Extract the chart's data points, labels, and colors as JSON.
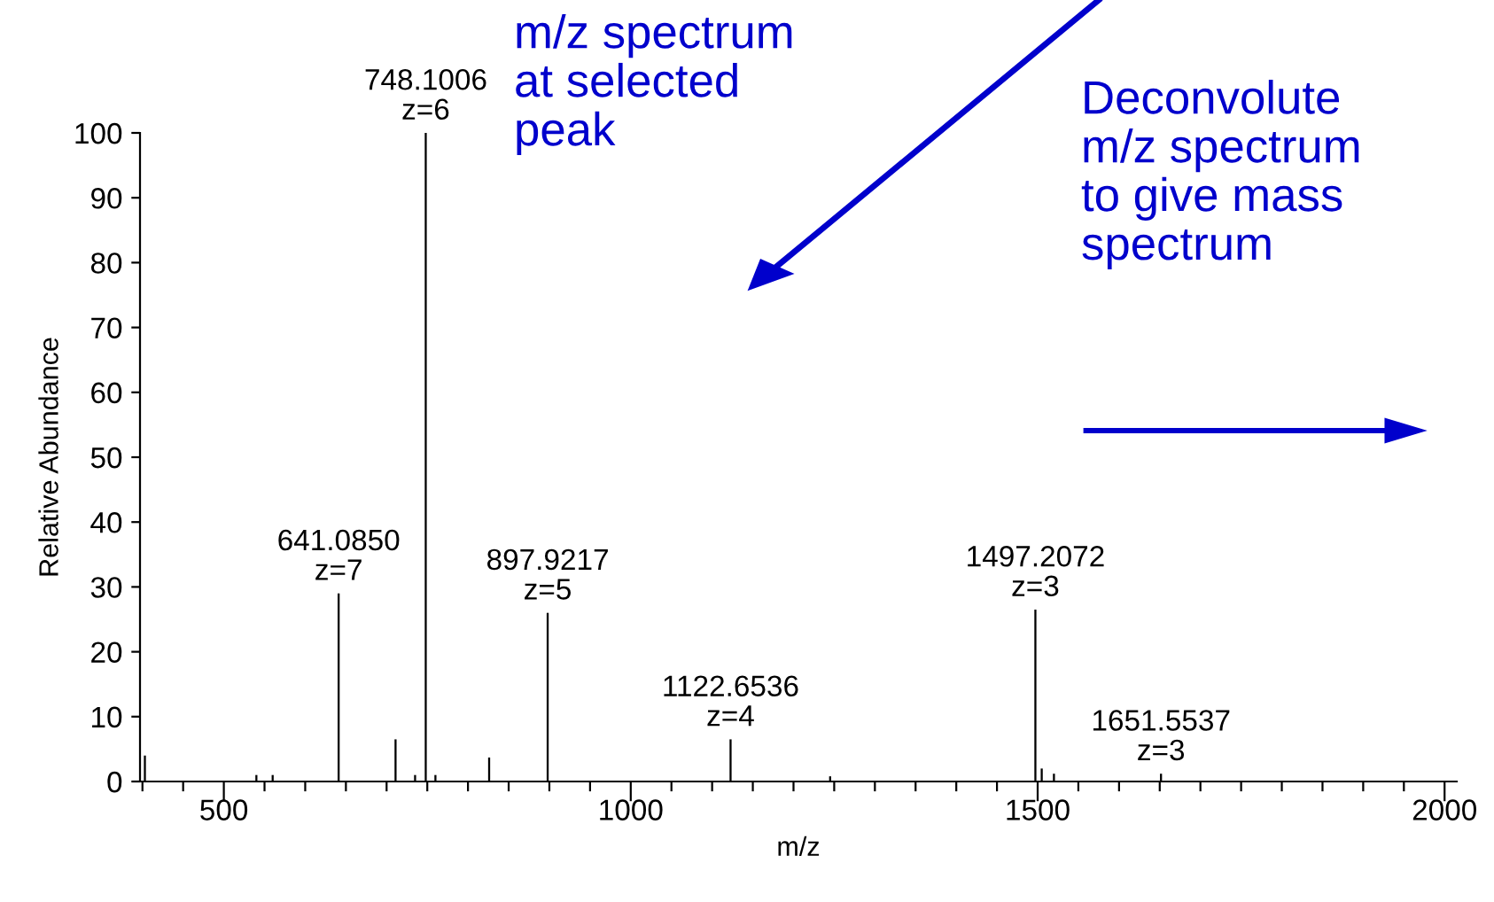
{
  "chart_data": {
    "type": "bar",
    "xlabel": "m/z",
    "ylabel": "Relative Abundance",
    "x": [
      403,
      540,
      560,
      641.085,
      711,
      735,
      748.1006,
      760,
      826,
      897.9217,
      1122.6536,
      1245,
      1497.2072,
      1505,
      1520,
      1651.5537
    ],
    "values": [
      4,
      1,
      1,
      29,
      6.5,
      1,
      100,
      1,
      3.7,
      26,
      6.5,
      0.8,
      26.5,
      2,
      1.2,
      1.2
    ],
    "color": "#000000",
    "xlim": [
      397,
      2015
    ],
    "ylim": [
      0,
      100
    ],
    "xticks": [
      {
        "value": 400,
        "label": null
      },
      {
        "value": 450,
        "label": null
      },
      500,
      {
        "value": 550,
        "label": null
      },
      {
        "value": 600,
        "label": null
      },
      {
        "value": 650,
        "label": null
      },
      {
        "value": 700,
        "label": null
      },
      {
        "value": 750,
        "label": null
      },
      {
        "value": 800,
        "label": null
      },
      {
        "value": 850,
        "label": null
      },
      {
        "value": 900,
        "label": null
      },
      {
        "value": 950,
        "label": null
      },
      1000,
      {
        "value": 1050,
        "label": null
      },
      {
        "value": 1100,
        "label": null
      },
      {
        "value": 1150,
        "label": null
      },
      {
        "value": 1200,
        "label": null
      },
      {
        "value": 1250,
        "label": null
      },
      {
        "value": 1300,
        "label": null
      },
      {
        "value": 1350,
        "label": null
      },
      {
        "value": 1400,
        "label": null
      },
      {
        "value": 1450,
        "label": null
      },
      1500,
      {
        "value": 1550,
        "label": null
      },
      {
        "value": 1600,
        "label": null
      },
      {
        "value": 1650,
        "label": null
      },
      {
        "value": 1700,
        "label": null
      },
      {
        "value": 1750,
        "label": null
      },
      {
        "value": 1800,
        "label": null
      },
      {
        "value": 1850,
        "label": null
      },
      {
        "value": 1900,
        "label": null
      },
      {
        "value": 1950,
        "label": null
      },
      2000
    ],
    "yticks": [
      0,
      10,
      20,
      30,
      40,
      50,
      60,
      70,
      80,
      90,
      100
    ],
    "grid": false,
    "annotations": [
      {
        "text": "641.0850\nz=7",
        "x": 641.085,
        "y": 29
      },
      {
        "text": "748.1006\nz=6",
        "x": 748.1006,
        "y": 100
      },
      {
        "text": "897.9217\nz=5",
        "x": 897.9217,
        "y": 26
      },
      {
        "text": "1122.6536\nz=4",
        "x": 1122.6536,
        "y": 6.5
      },
      {
        "text": "1497.2072\nz=3",
        "x": 1497.2072,
        "y": 26.5
      },
      {
        "text": "1651.5537\nz=3",
        "x": 1651.5537,
        "y": 1.2
      },
      "m/z spectrum\nat selected\npeak",
      "Deconvolute\nm/z spectrum\nto give mass\nspectrum"
    ]
  }
}
